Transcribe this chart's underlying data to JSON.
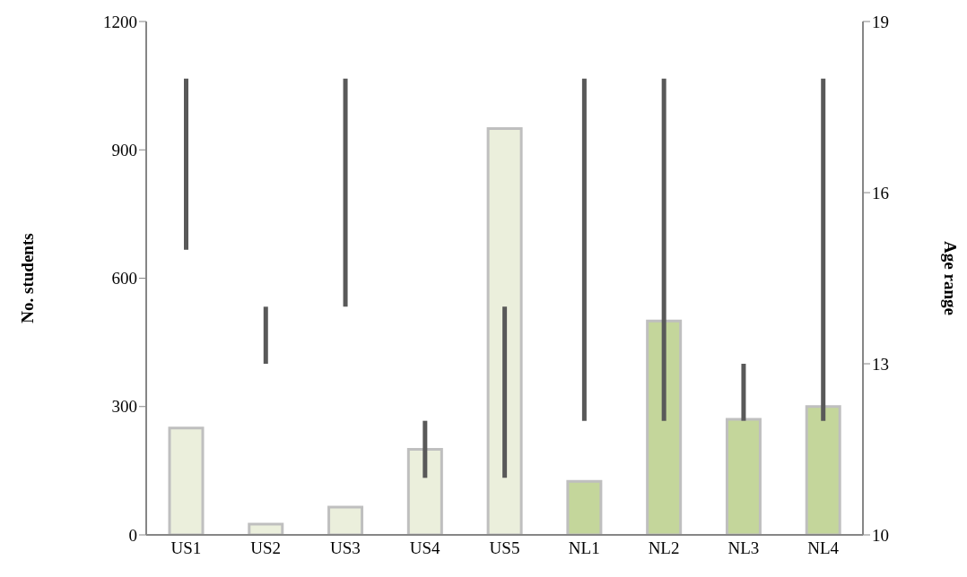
{
  "chart_data": {
    "type": "bar",
    "ylabel": "No. students",
    "y2label": "Age range",
    "categories": [
      "US1",
      "US2",
      "US3",
      "US4",
      "US5",
      "NL1",
      "NL2",
      "NL3",
      "NL4"
    ],
    "series": [
      {
        "values": [
          250,
          25,
          65,
          200,
          950,
          125,
          500,
          270,
          300
        ],
        "colors": [
          "#ebefdc",
          "#ebefdc",
          "#ebefdc",
          "#ebefdc",
          "#ebefdc",
          "#c4d69b",
          "#c4d69b",
          "#c4d69b",
          "#c4d69b"
        ]
      },
      {
        "axis": "y2",
        "color": "#595959",
        "base": [
          15,
          13,
          14,
          11,
          11,
          12,
          12,
          12,
          12
        ],
        "values": [
          3,
          1,
          4,
          1,
          3,
          6,
          6,
          1,
          6
        ]
      }
    ],
    "ylim": [
      0,
      1200
    ],
    "yticks": [
      0,
      300,
      600,
      900,
      1200
    ],
    "y2lim": [
      10,
      19
    ],
    "y2ticks": [
      10,
      13,
      16,
      19
    ]
  }
}
